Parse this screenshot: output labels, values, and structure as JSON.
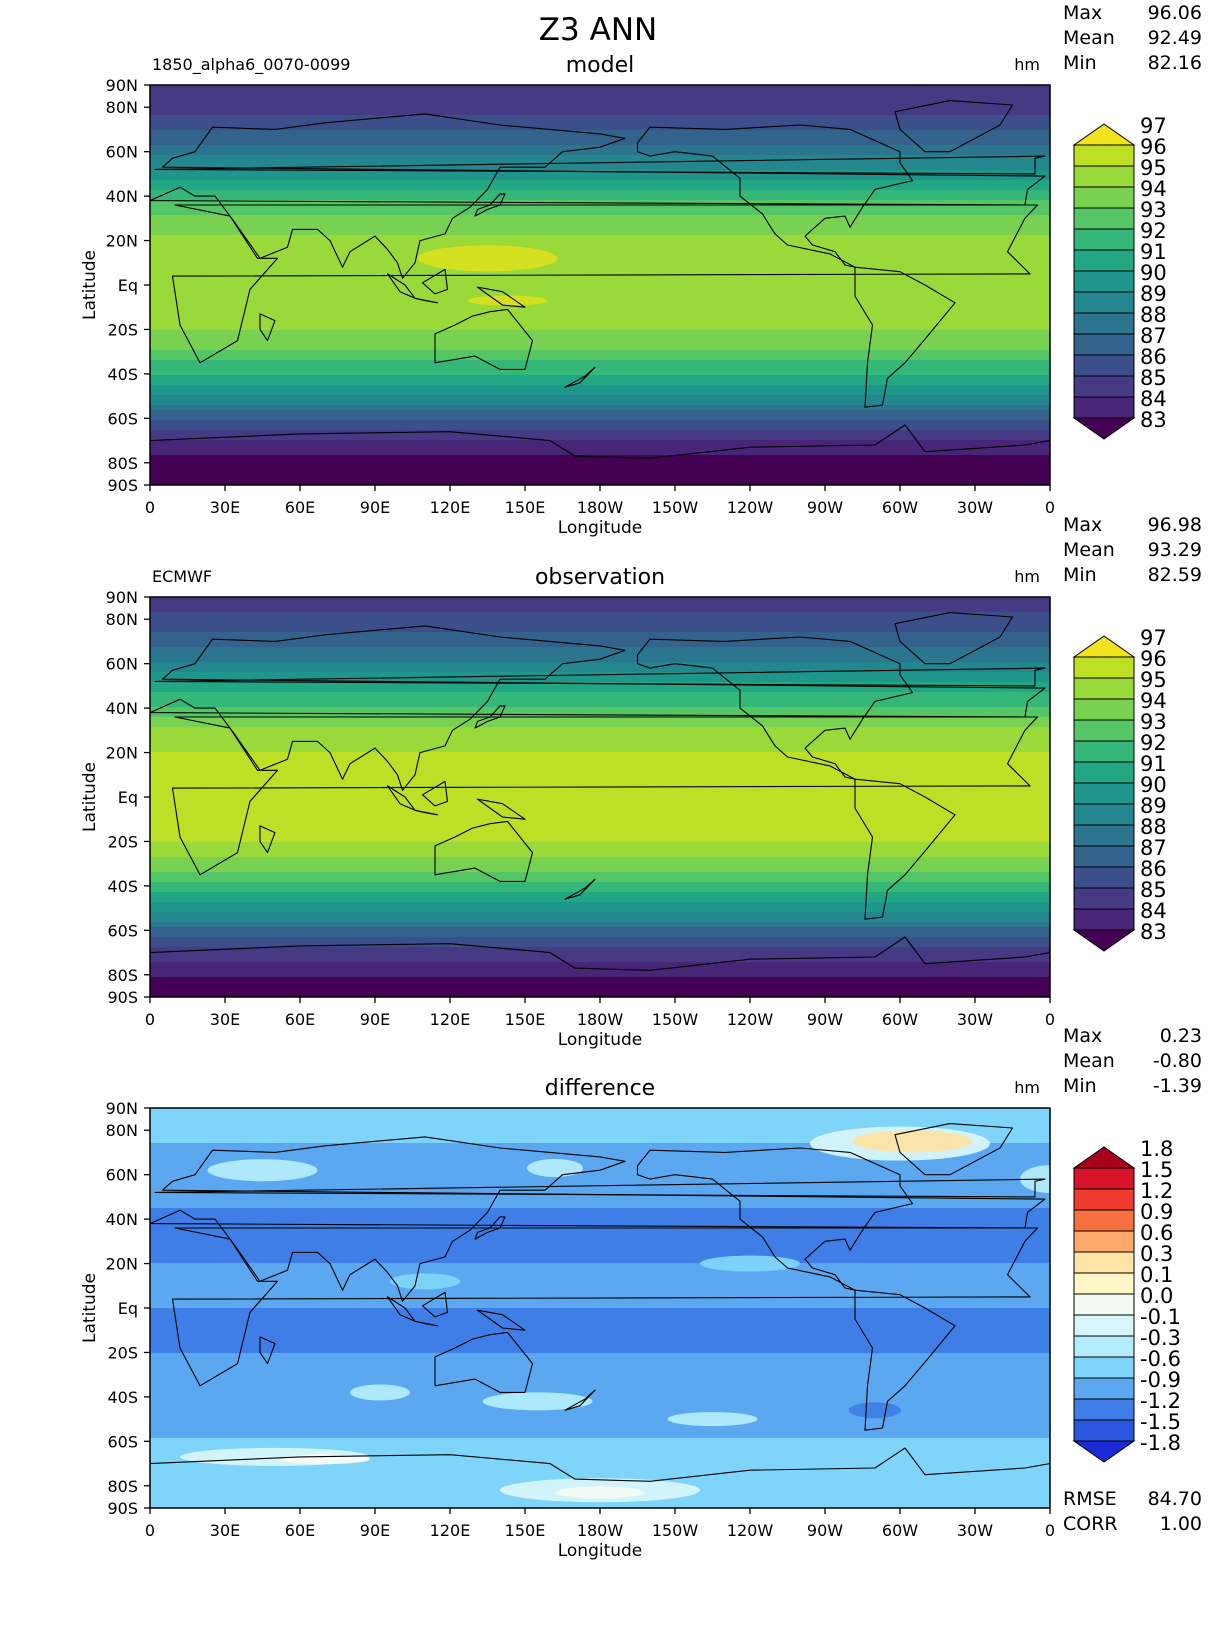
{
  "title": "Z3 ANN",
  "x_ticks": [
    "0",
    "30E",
    "60E",
    "90E",
    "120E",
    "150E",
    "180W",
    "150W",
    "120W",
    "90W",
    "60W",
    "30W",
    "0"
  ],
  "y_ticks": [
    "90N",
    "80N",
    "60N",
    "40N",
    "20N",
    "Eq",
    "20S",
    "40S",
    "60S",
    "80S",
    "90S"
  ],
  "x_label": "Longitude",
  "y_label": "Latitude",
  "panels": [
    {
      "id": "model",
      "center_title": "model",
      "left_title": "1850_alpha6_0070-0099",
      "units": "hm",
      "stats": [
        {
          "label": "Max",
          "value": "96.06"
        },
        {
          "label": "Mean",
          "value": "92.49"
        },
        {
          "label": "Min",
          "value": "82.16"
        }
      ],
      "colorbar": [
        "97",
        "96",
        "95",
        "94",
        "93",
        "92",
        "91",
        "90",
        "89",
        "88",
        "87",
        "86",
        "85",
        "84",
        "83"
      ],
      "colors": [
        "#f2e21e",
        "#bddf26",
        "#9ad93a",
        "#78d151",
        "#55c666",
        "#35b779",
        "#21a784",
        "#1f968b",
        "#24868e",
        "#2b758e",
        "#33628d",
        "#3c4f8a",
        "#453a83",
        "#482576",
        "#440154"
      ]
    },
    {
      "id": "observation",
      "center_title": "observation",
      "left_title": "ECMWF",
      "units": "hm",
      "stats": [
        {
          "label": "Max",
          "value": "96.98"
        },
        {
          "label": "Mean",
          "value": "93.29"
        },
        {
          "label": "Min",
          "value": "82.59"
        }
      ],
      "colorbar": [
        "97",
        "96",
        "95",
        "94",
        "93",
        "92",
        "91",
        "90",
        "89",
        "88",
        "87",
        "86",
        "85",
        "84",
        "83"
      ],
      "colors": [
        "#f2e21e",
        "#bddf26",
        "#9ad93a",
        "#78d151",
        "#55c666",
        "#35b779",
        "#21a784",
        "#1f968b",
        "#24868e",
        "#2b758e",
        "#33628d",
        "#3c4f8a",
        "#453a83",
        "#482576",
        "#440154"
      ]
    },
    {
      "id": "difference",
      "center_title": "difference",
      "left_title": "",
      "units": "hm",
      "stats": [
        {
          "label": "Max",
          "value": "0.23"
        },
        {
          "label": "Mean",
          "value": "-0.80"
        },
        {
          "label": "Min",
          "value": "-1.39"
        }
      ],
      "colorbar": [
        "1.8",
        "1.5",
        "1.2",
        "0.9",
        "0.6",
        "0.3",
        "0.1",
        "0.0",
        "-0.1",
        "-0.3",
        "-0.6",
        "-0.9",
        "-1.2",
        "-1.5",
        "-1.8"
      ],
      "colors": [
        "#a8001c",
        "#d8142a",
        "#f03b30",
        "#f7703f",
        "#fbaa6c",
        "#fde3a4",
        "#fff7c7",
        "#f3fbf3",
        "#d6f6fb",
        "#b3ecfb",
        "#7fd4fa",
        "#5ba8f0",
        "#3e7ee6",
        "#2b57e0",
        "#1a2ad6"
      ],
      "footer_stats": [
        {
          "label": "RMSE",
          "value": "84.70"
        },
        {
          "label": "CORR",
          "value": "1.00"
        }
      ]
    }
  ],
  "chart_data": [
    {
      "type": "heatmap",
      "title": "model",
      "subtitle": "1850_alpha6_0070-0099",
      "variable": "Z3 ANN",
      "units": "hm",
      "xlabel": "Longitude",
      "ylabel": "Latitude",
      "levels": [
        83,
        84,
        85,
        86,
        87,
        88,
        89,
        90,
        91,
        92,
        93,
        94,
        95,
        96,
        97
      ],
      "zonal_profile": {
        "lat": [
          90,
          80,
          70,
          60,
          50,
          40,
          30,
          20,
          10,
          0,
          -10,
          -20,
          -30,
          -40,
          -50,
          -60,
          -70,
          -80,
          -90
        ],
        "value": [
          85.0,
          85.6,
          86.8,
          88.5,
          90.5,
          92.5,
          94.3,
          95.2,
          95.5,
          95.6,
          95.5,
          95.1,
          93.8,
          92.0,
          89.8,
          87.2,
          85.0,
          83.3,
          82.8
        ]
      },
      "stats": {
        "max": 96.06,
        "mean": 92.49,
        "min": 82.16
      }
    },
    {
      "type": "heatmap",
      "title": "observation",
      "subtitle": "ECMWF",
      "variable": "Z3 ANN",
      "units": "hm",
      "xlabel": "Longitude",
      "ylabel": "Latitude",
      "levels": [
        83,
        84,
        85,
        86,
        87,
        88,
        89,
        90,
        91,
        92,
        93,
        94,
        95,
        96,
        97
      ],
      "zonal_profile": {
        "lat": [
          90,
          80,
          70,
          60,
          50,
          40,
          30,
          20,
          10,
          0,
          -10,
          -20,
          -30,
          -40,
          -50,
          -60,
          -70,
          -80,
          -90
        ],
        "value": [
          85.6,
          86.2,
          87.5,
          89.2,
          91.2,
          93.3,
          95.2,
          96.1,
          96.3,
          96.4,
          96.3,
          96.0,
          94.6,
          92.8,
          90.5,
          87.9,
          85.6,
          84.0,
          83.3
        ]
      },
      "stats": {
        "max": 96.98,
        "mean": 93.29,
        "min": 82.59
      }
    },
    {
      "type": "heatmap",
      "title": "difference",
      "variable": "Z3 ANN",
      "units": "hm",
      "xlabel": "Longitude",
      "ylabel": "Latitude",
      "levels": [
        -1.8,
        -1.5,
        -1.2,
        -0.9,
        -0.6,
        -0.3,
        -0.1,
        0.0,
        0.1,
        0.3,
        0.6,
        0.9,
        1.2,
        1.5,
        1.8
      ],
      "zonal_profile": {
        "lat": [
          90,
          80,
          70,
          60,
          50,
          40,
          30,
          20,
          10,
          0,
          -10,
          -20,
          -30,
          -40,
          -50,
          -60,
          -70,
          -80,
          -90
        ],
        "value": [
          -0.45,
          -0.5,
          -0.65,
          -0.8,
          -0.85,
          -0.95,
          -0.95,
          -0.9,
          -0.9,
          -0.9,
          -0.95,
          -0.9,
          -0.8,
          -0.65,
          -0.75,
          -0.55,
          -0.35,
          -0.4,
          -0.5
        ]
      },
      "stats": {
        "max": 0.23,
        "mean": -0.8,
        "min": -1.39,
        "rmse": 84.7,
        "corr": 1.0
      }
    }
  ]
}
